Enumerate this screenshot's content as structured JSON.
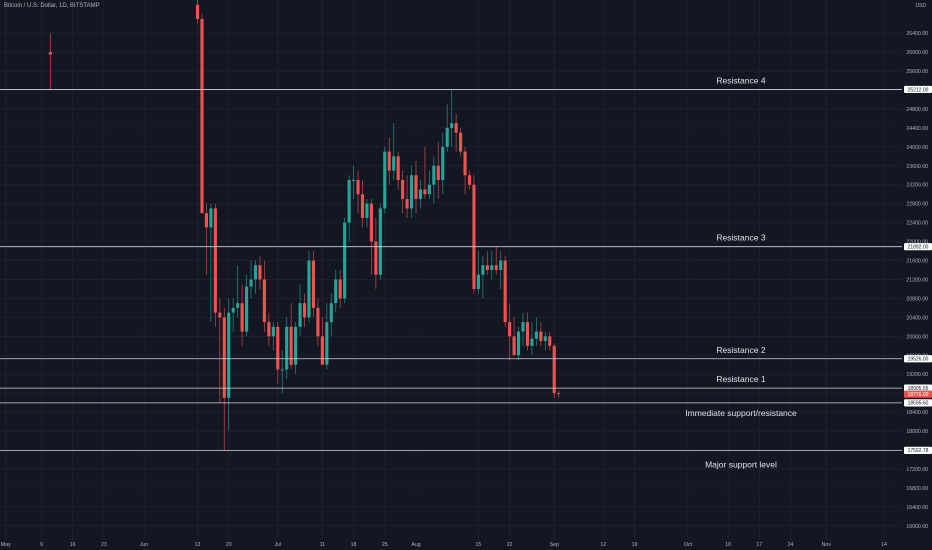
{
  "header": {
    "title": "Bitcoin / U.S. Dollar, 1D, BITSTAMP",
    "currency": "USD"
  },
  "colors": {
    "background": "#131722",
    "grid": "#1c2030",
    "up": "#26a69a",
    "down": "#ef5350",
    "level_line": "#d1d4dc",
    "axis_text": "#b2b5be",
    "annotation": "#e0e3eb",
    "price_tag_bg": "#ffffff",
    "price_tag_text": "#131722",
    "last_price_bg": "#ef5350"
  },
  "chart_data": {
    "type": "candlestick",
    "title": "Bitcoin / U.S. Dollar, 1D, BITSTAMP",
    "ylabel": "USD",
    "ylim": [
      15700,
      27100
    ],
    "y_ticks": [
      26400,
      26000,
      25600,
      25200,
      24800,
      24400,
      24000,
      23600,
      23200,
      22800,
      22400,
      22000,
      21600,
      21200,
      20800,
      20400,
      20000,
      19600,
      19200,
      18800,
      18400,
      18000,
      17600,
      17200,
      16800,
      16400,
      16000
    ],
    "y_tick_labels": [
      "26400.00",
      "26000.00",
      "25600.00",
      "25200.00",
      "24800.00",
      "24400.00",
      "24000.00",
      "23600.00",
      "23200.00",
      "22800.00",
      "22400.00",
      "22000.00",
      "21600.00",
      "21200.00",
      "20800.00",
      "20400.00",
      "20000.00",
      "19600.00",
      "19200.00",
      "18800.00",
      "18400.00",
      "18000.00",
      "17600.00",
      "17200.00",
      "16800.00",
      "16400.00",
      "16000.00"
    ],
    "x_ticks": [
      {
        "label": "May",
        "day": 0
      },
      {
        "label": "9",
        "day": 8
      },
      {
        "label": "16",
        "day": 15
      },
      {
        "label": "23",
        "day": 22
      },
      {
        "label": "Jun",
        "day": 31
      },
      {
        "label": "13",
        "day": 43
      },
      {
        "label": "20",
        "day": 50
      },
      {
        "label": "Jul",
        "day": 61
      },
      {
        "label": "11",
        "day": 71
      },
      {
        "label": "18",
        "day": 78
      },
      {
        "label": "25",
        "day": 85
      },
      {
        "label": "Aug",
        "day": 92
      },
      {
        "label": "15",
        "day": 106
      },
      {
        "label": "22",
        "day": 113
      },
      {
        "label": "Sep",
        "day": 123
      },
      {
        "label": "12",
        "day": 134
      },
      {
        "label": "19",
        "day": 141
      },
      {
        "label": "Oct",
        "day": 153
      },
      {
        "label": "10",
        "day": 162
      },
      {
        "label": "17",
        "day": 169
      },
      {
        "label": "24",
        "day": 176
      },
      {
        "label": "Nov",
        "day": 184
      },
      {
        "label": "14",
        "day": 197
      }
    ],
    "x_domain_days": [
      -1.3,
      201
    ],
    "levels": [
      {
        "name": "Resistance 4",
        "price": 25212.0,
        "label": "25212.00"
      },
      {
        "name": "Resistance 3",
        "price": 21892.0,
        "label": "21892.00"
      },
      {
        "name": "Resistance 2",
        "price": 19526.0,
        "label": "19526.00"
      },
      {
        "name": "Resistance 1",
        "price": 18905.55,
        "label": "18905.55"
      },
      {
        "name": "Immediate support/resistance",
        "price": 18595.6,
        "label": "18595.60"
      },
      {
        "name": "Major support level",
        "price": 17592.78,
        "label": "17592.78"
      }
    ],
    "last_price": {
      "price": 18779.0,
      "label": "18779.00"
    },
    "candles": [
      {
        "d": 10,
        "o": 26000,
        "h": 26400,
        "l": 25200,
        "c": 25950
      },
      {
        "d": 43,
        "o": 27000,
        "h": 27100,
        "l": 26600,
        "c": 26700
      },
      {
        "d": 44,
        "o": 26700,
        "h": 26800,
        "l": 22600,
        "c": 22600
      },
      {
        "d": 45,
        "o": 22600,
        "h": 22800,
        "l": 21300,
        "c": 22300
      },
      {
        "d": 46,
        "o": 22300,
        "h": 22800,
        "l": 20300,
        "c": 22700
      },
      {
        "d": 47,
        "o": 22700,
        "h": 22800,
        "l": 20200,
        "c": 20500
      },
      {
        "d": 48,
        "o": 20500,
        "h": 20800,
        "l": 18600,
        "c": 20400
      },
      {
        "d": 49,
        "o": 20400,
        "h": 20600,
        "l": 17600,
        "c": 18700
      },
      {
        "d": 50,
        "o": 18700,
        "h": 20800,
        "l": 18000,
        "c": 20500
      },
      {
        "d": 51,
        "o": 20500,
        "h": 20800,
        "l": 20100,
        "c": 20600
      },
      {
        "d": 52,
        "o": 20600,
        "h": 21500,
        "l": 20400,
        "c": 20700
      },
      {
        "d": 53,
        "o": 20700,
        "h": 21100,
        "l": 19800,
        "c": 20100
      },
      {
        "d": 54,
        "o": 20100,
        "h": 21300,
        "l": 20000,
        "c": 21050
      },
      {
        "d": 55,
        "o": 21050,
        "h": 21600,
        "l": 20800,
        "c": 21200
      },
      {
        "d": 56,
        "o": 21200,
        "h": 21600,
        "l": 20900,
        "c": 21500
      },
      {
        "d": 57,
        "o": 21500,
        "h": 21700,
        "l": 21000,
        "c": 21200
      },
      {
        "d": 58,
        "o": 21200,
        "h": 21600,
        "l": 20100,
        "c": 20300
      },
      {
        "d": 59,
        "o": 20300,
        "h": 20500,
        "l": 19800,
        "c": 20000
      },
      {
        "d": 60,
        "o": 20000,
        "h": 20300,
        "l": 19700,
        "c": 20200
      },
      {
        "d": 61,
        "o": 20200,
        "h": 20300,
        "l": 19000,
        "c": 19300
      },
      {
        "d": 62,
        "o": 19300,
        "h": 19700,
        "l": 18800,
        "c": 19300
      },
      {
        "d": 63,
        "o": 19300,
        "h": 20400,
        "l": 19100,
        "c": 20200
      },
      {
        "d": 64,
        "o": 20200,
        "h": 20700,
        "l": 19300,
        "c": 19400
      },
      {
        "d": 65,
        "o": 19400,
        "h": 20300,
        "l": 19200,
        "c": 20200
      },
      {
        "d": 66,
        "o": 20200,
        "h": 21100,
        "l": 20000,
        "c": 20700
      },
      {
        "d": 67,
        "o": 20700,
        "h": 20900,
        "l": 20200,
        "c": 20400
      },
      {
        "d": 68,
        "o": 20400,
        "h": 21800,
        "l": 20300,
        "c": 21600
      },
      {
        "d": 69,
        "o": 21600,
        "h": 21800,
        "l": 20400,
        "c": 20600
      },
      {
        "d": 70,
        "o": 20600,
        "h": 20800,
        "l": 19800,
        "c": 20000
      },
      {
        "d": 71,
        "o": 20000,
        "h": 20400,
        "l": 19500,
        "c": 19400
      },
      {
        "d": 72,
        "o": 19400,
        "h": 20700,
        "l": 19300,
        "c": 20300
      },
      {
        "d": 73,
        "o": 20300,
        "h": 20900,
        "l": 20000,
        "c": 20700
      },
      {
        "d": 74,
        "o": 20700,
        "h": 21400,
        "l": 20500,
        "c": 21200
      },
      {
        "d": 75,
        "o": 21200,
        "h": 21400,
        "l": 20600,
        "c": 20800
      },
      {
        "d": 76,
        "o": 20800,
        "h": 22500,
        "l": 20700,
        "c": 22400
      },
      {
        "d": 77,
        "o": 22400,
        "h": 23400,
        "l": 22000,
        "c": 23300
      },
      {
        "d": 78,
        "o": 23300,
        "h": 23600,
        "l": 22900,
        "c": 23300
      },
      {
        "d": 79,
        "o": 23300,
        "h": 23500,
        "l": 22600,
        "c": 23000
      },
      {
        "d": 80,
        "o": 23000,
        "h": 23300,
        "l": 22300,
        "c": 22500
      },
      {
        "d": 81,
        "o": 22500,
        "h": 22900,
        "l": 22300,
        "c": 22800
      },
      {
        "d": 82,
        "o": 22800,
        "h": 22900,
        "l": 21300,
        "c": 22000
      },
      {
        "d": 83,
        "o": 22000,
        "h": 22500,
        "l": 21000,
        "c": 21300
      },
      {
        "d": 84,
        "o": 21300,
        "h": 22800,
        "l": 21200,
        "c": 22700
      },
      {
        "d": 85,
        "o": 22700,
        "h": 24000,
        "l": 22600,
        "c": 23900
      },
      {
        "d": 86,
        "o": 23900,
        "h": 24200,
        "l": 23200,
        "c": 23500
      },
      {
        "d": 87,
        "o": 23500,
        "h": 24500,
        "l": 23300,
        "c": 23800
      },
      {
        "d": 88,
        "o": 23800,
        "h": 23900,
        "l": 23100,
        "c": 23300
      },
      {
        "d": 89,
        "o": 23300,
        "h": 23500,
        "l": 22600,
        "c": 22900
      },
      {
        "d": 90,
        "o": 22900,
        "h": 23400,
        "l": 22500,
        "c": 22700
      },
      {
        "d": 91,
        "o": 22700,
        "h": 23600,
        "l": 22500,
        "c": 23400
      },
      {
        "d": 92,
        "o": 23400,
        "h": 23700,
        "l": 22600,
        "c": 22900
      },
      {
        "d": 93,
        "o": 22900,
        "h": 23300,
        "l": 22700,
        "c": 23100
      },
      {
        "d": 94,
        "o": 23100,
        "h": 24000,
        "l": 22900,
        "c": 23000
      },
      {
        "d": 95,
        "o": 23000,
        "h": 23500,
        "l": 22900,
        "c": 23200
      },
      {
        "d": 96,
        "o": 23200,
        "h": 23800,
        "l": 22800,
        "c": 23600
      },
      {
        "d": 97,
        "o": 23600,
        "h": 24100,
        "l": 22900,
        "c": 23300
      },
      {
        "d": 98,
        "o": 23300,
        "h": 24300,
        "l": 23000,
        "c": 24000
      },
      {
        "d": 99,
        "o": 24000,
        "h": 24900,
        "l": 23900,
        "c": 24400
      },
      {
        "d": 100,
        "o": 24400,
        "h": 25200,
        "l": 24000,
        "c": 24500
      },
      {
        "d": 101,
        "o": 24500,
        "h": 24700,
        "l": 23900,
        "c": 24300
      },
      {
        "d": 102,
        "o": 24300,
        "h": 24400,
        "l": 23800,
        "c": 23900
      },
      {
        "d": 103,
        "o": 23900,
        "h": 24000,
        "l": 23000,
        "c": 23400
      },
      {
        "d": 104,
        "o": 23400,
        "h": 23500,
        "l": 23100,
        "c": 23200
      },
      {
        "d": 105,
        "o": 23200,
        "h": 23400,
        "l": 20900,
        "c": 21000
      },
      {
        "d": 106,
        "o": 21000,
        "h": 21800,
        "l": 20900,
        "c": 21300
      },
      {
        "d": 107,
        "o": 21300,
        "h": 21700,
        "l": 20800,
        "c": 21500
      },
      {
        "d": 108,
        "o": 21500,
        "h": 21800,
        "l": 21300,
        "c": 21400
      },
      {
        "d": 109,
        "o": 21400,
        "h": 21800,
        "l": 21200,
        "c": 21500
      },
      {
        "d": 110,
        "o": 21500,
        "h": 21900,
        "l": 21300,
        "c": 21400
      },
      {
        "d": 111,
        "o": 21400,
        "h": 21800,
        "l": 21000,
        "c": 21600
      },
      {
        "d": 112,
        "o": 21600,
        "h": 21700,
        "l": 20200,
        "c": 20300
      },
      {
        "d": 113,
        "o": 20300,
        "h": 20700,
        "l": 19500,
        "c": 20000
      },
      {
        "d": 114,
        "o": 20000,
        "h": 20400,
        "l": 19600,
        "c": 19600
      },
      {
        "d": 115,
        "o": 19600,
        "h": 20200,
        "l": 19500,
        "c": 20100
      },
      {
        "d": 116,
        "o": 20100,
        "h": 20500,
        "l": 19800,
        "c": 20300
      },
      {
        "d": 117,
        "o": 20300,
        "h": 20500,
        "l": 19700,
        "c": 19800
      },
      {
        "d": 118,
        "o": 19800,
        "h": 20300,
        "l": 19600,
        "c": 19950
      },
      {
        "d": 119,
        "o": 19950,
        "h": 20400,
        "l": 19800,
        "c": 20100
      },
      {
        "d": 120,
        "o": 20100,
        "h": 20300,
        "l": 19800,
        "c": 19900
      },
      {
        "d": 121,
        "o": 19900,
        "h": 20100,
        "l": 19700,
        "c": 20000
      },
      {
        "d": 122,
        "o": 20000,
        "h": 20100,
        "l": 19700,
        "c": 19800
      },
      {
        "d": 123,
        "o": 19800,
        "h": 19850,
        "l": 18700,
        "c": 18800
      },
      {
        "d": 124,
        "o": 18800,
        "h": 18850,
        "l": 18700,
        "c": 18779
      }
    ]
  }
}
